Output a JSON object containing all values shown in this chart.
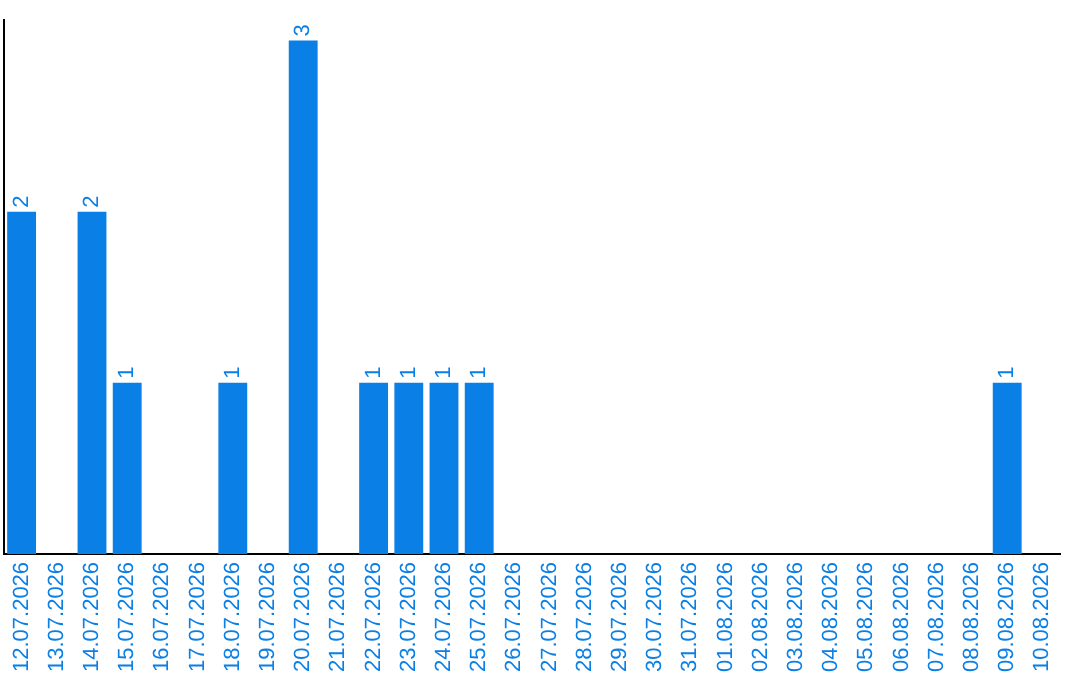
{
  "chart_data": {
    "type": "bar",
    "categories": [
      "12.07.2026",
      "13.07.2026",
      "14.07.2026",
      "15.07.2026",
      "16.07.2026",
      "17.07.2026",
      "18.07.2026",
      "19.07.2026",
      "20.07.2026",
      "21.07.2026",
      "22.07.2026",
      "23.07.2026",
      "24.07.2026",
      "25.07.2026",
      "26.07.2026",
      "27.07.2026",
      "28.07.2026",
      "29.07.2026",
      "30.07.2026",
      "31.07.2026",
      "01.08.2026",
      "02.08.2026",
      "03.08.2026",
      "04.08.2026",
      "05.08.2026",
      "06.08.2026",
      "07.08.2026",
      "08.08.2026",
      "09.08.2026",
      "10.08.2026"
    ],
    "values": [
      2,
      0,
      2,
      1,
      0,
      0,
      1,
      0,
      3,
      0,
      1,
      1,
      1,
      1,
      0,
      0,
      0,
      0,
      0,
      0,
      0,
      0,
      0,
      0,
      0,
      0,
      0,
      0,
      1,
      0
    ],
    "value_labels": [
      "2",
      null,
      "2",
      "1",
      null,
      null,
      "1",
      null,
      "3",
      null,
      "1",
      "1",
      "1",
      "1",
      null,
      null,
      null,
      null,
      null,
      null,
      null,
      null,
      null,
      null,
      null,
      null,
      null,
      null,
      "1",
      null
    ],
    "color": "#0a7fe6",
    "ylim": [
      0,
      3.12
    ],
    "tick_labels": "x",
    "grid": false,
    "legend": false
  }
}
